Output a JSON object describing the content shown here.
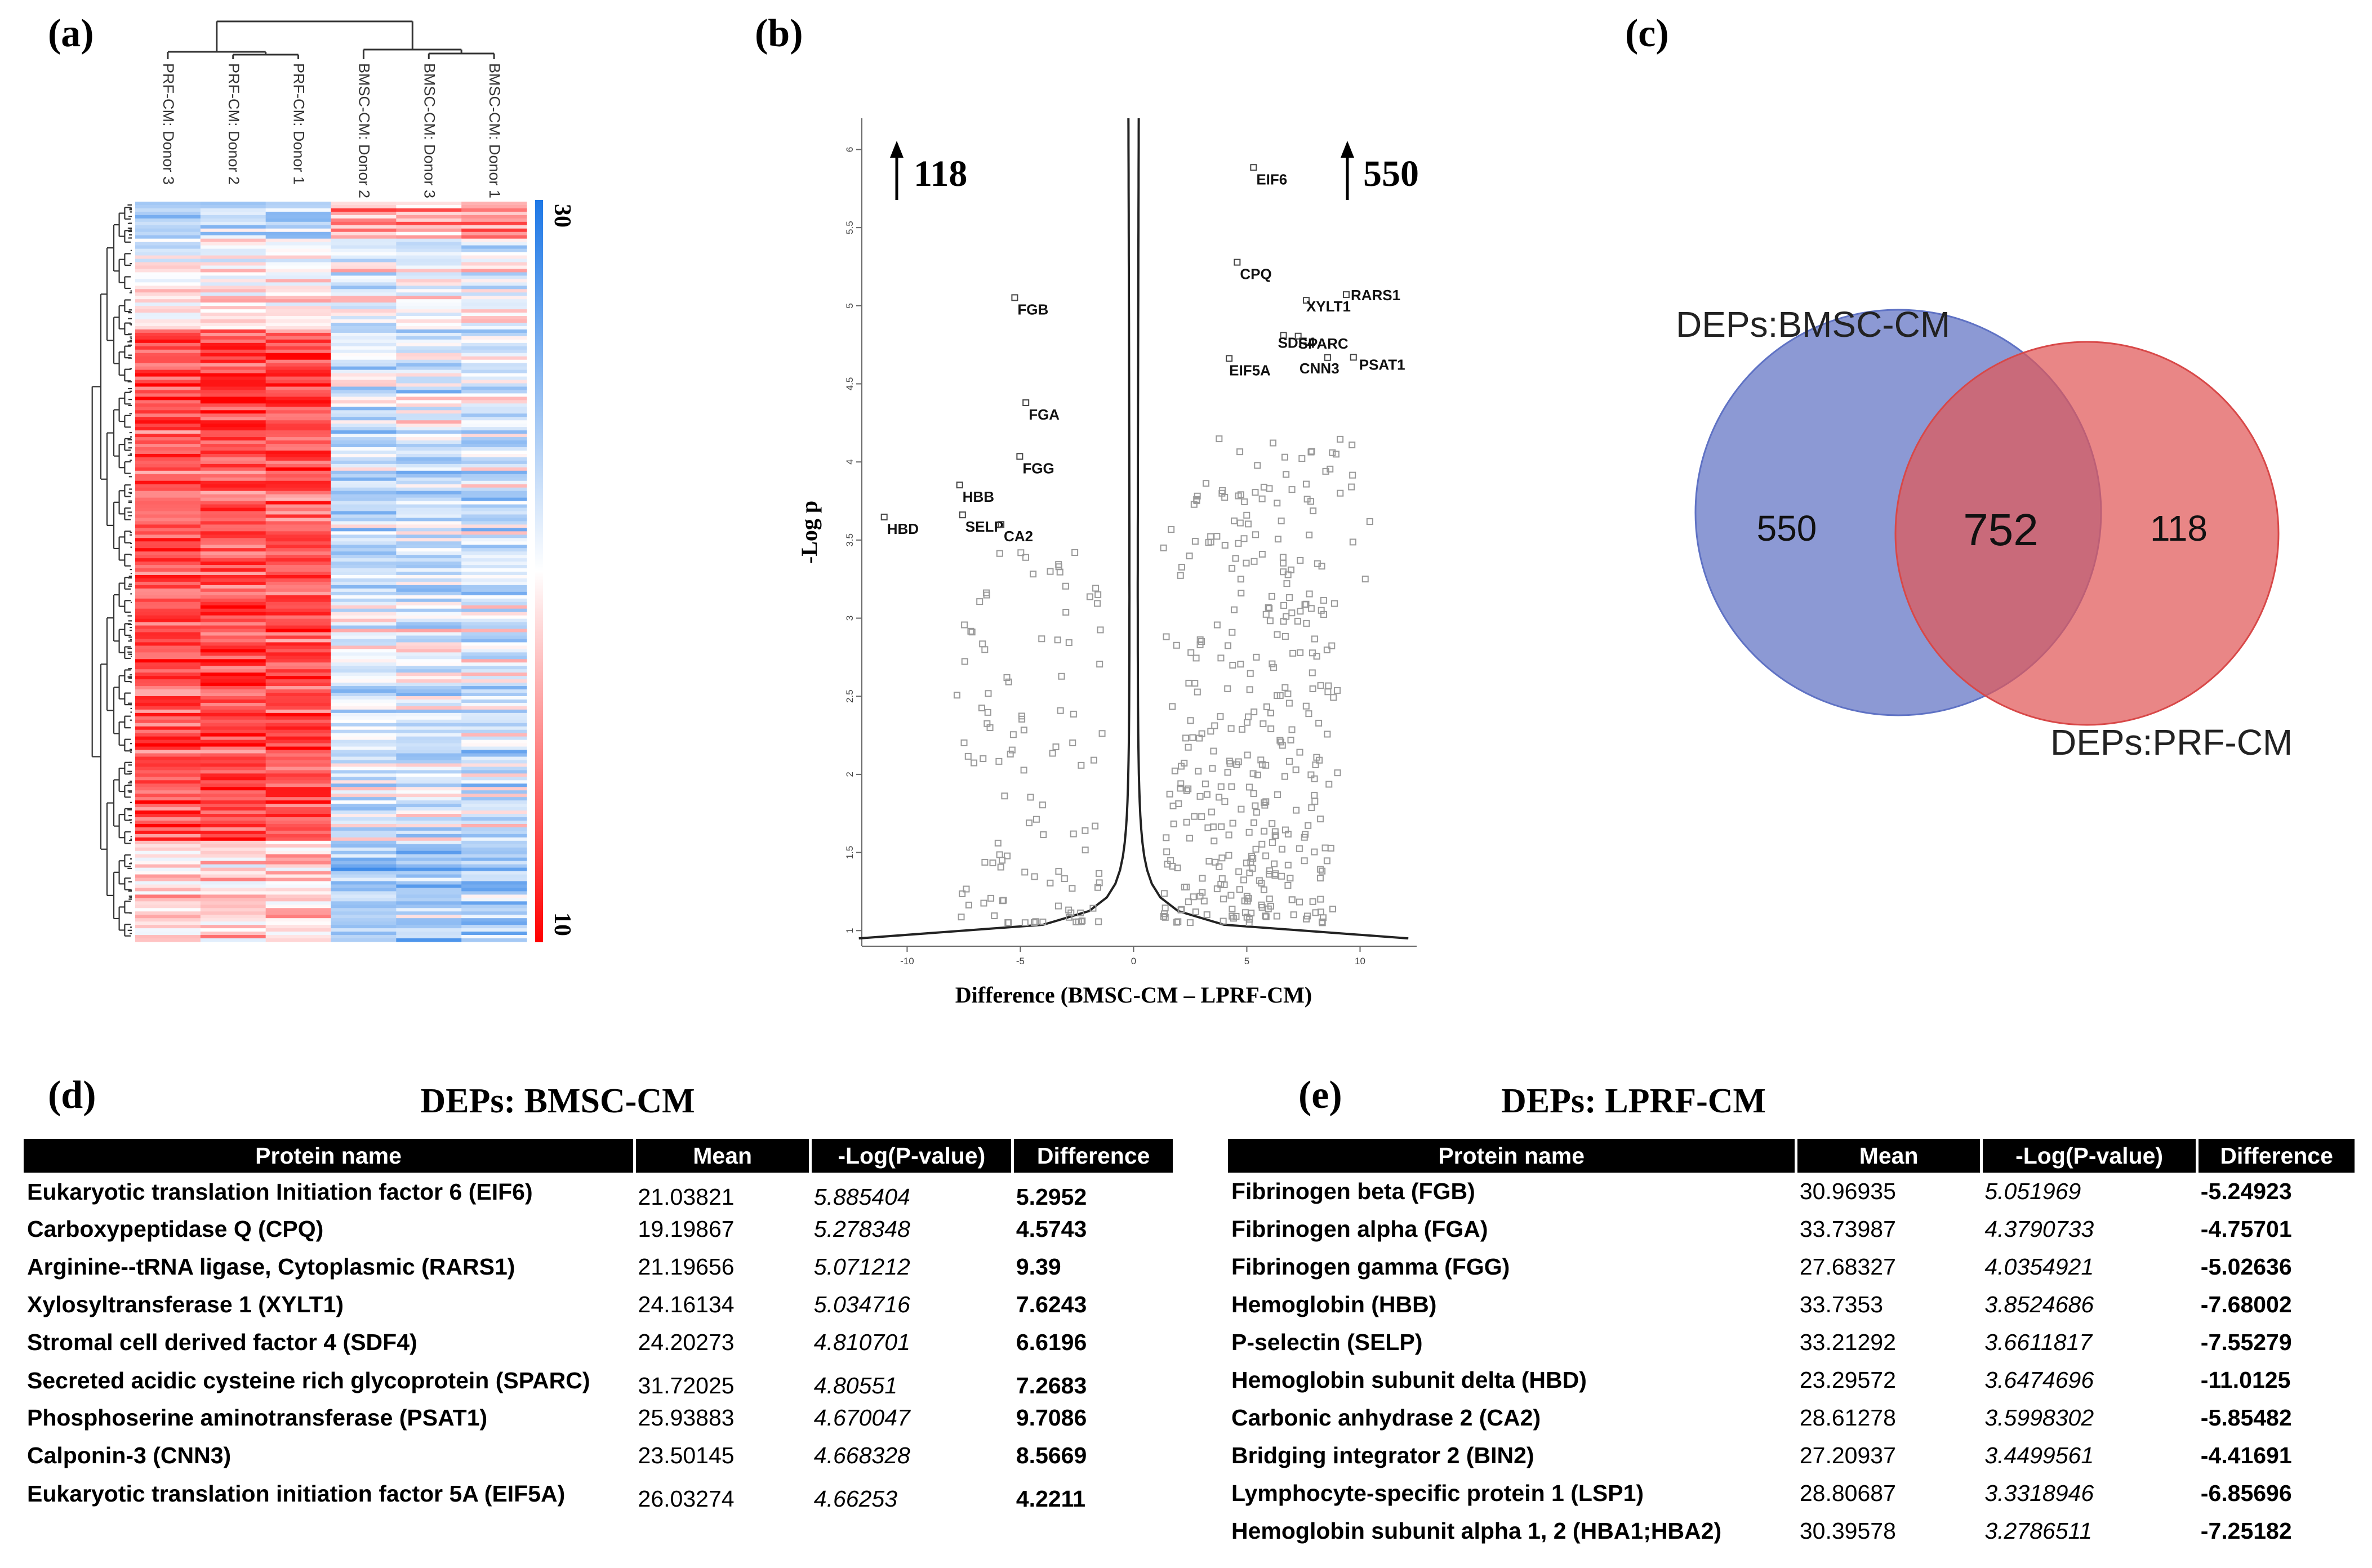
{
  "panel_labels": {
    "a": "(a)",
    "b": "(b)",
    "c": "(c)",
    "d": "(d)",
    "e": "(e)"
  },
  "chart_data": [
    {
      "type": "heatmap",
      "samples": [
        "PRF-CM: Donor 3",
        "PRF-CM: Donor 2",
        "PRF-CM: Donor 1",
        "BMSC-CM: Donor 2",
        "BMSC-CM: Donor 3",
        "BMSC-CM: Donor 1"
      ],
      "colorbar": {
        "min_label": "10",
        "max_label": "30",
        "min_color": "#ff0000",
        "mid_color": "#ffffff",
        "max_color": "#1e78e6"
      },
      "rows_approx": 220
    },
    {
      "type": "scatter",
      "xlabel": "Difference (BMSC-CM – LPRF-CM)",
      "ylabel": "-Log p",
      "xlim": [
        -12,
        12.5
      ],
      "ylim": [
        0.9,
        6.2
      ],
      "xticks": [
        -10,
        -5,
        0,
        5,
        10
      ],
      "yticks": [
        1,
        1.5,
        2,
        2.5,
        3,
        3.5,
        4,
        4.5,
        5,
        5.5,
        6
      ],
      "left_count": "118",
      "right_count": "550",
      "labeled_points": [
        {
          "label": "EIF6",
          "x": 5.2952,
          "y": 5.885404
        },
        {
          "label": "CPQ",
          "x": 4.5743,
          "y": 5.278348
        },
        {
          "label": "RARS1",
          "x": 9.39,
          "y": 5.071212
        },
        {
          "label": "XYLT1",
          "x": 7.6243,
          "y": 5.034716
        },
        {
          "label": "SDF4",
          "x": 6.6196,
          "y": 4.810701
        },
        {
          "label": "SPARC",
          "x": 7.2683,
          "y": 4.80551
        },
        {
          "label": "PSAT1",
          "x": 9.7086,
          "y": 4.670047
        },
        {
          "label": "CNN3",
          "x": 8.5669,
          "y": 4.668328
        },
        {
          "label": "EIF5A",
          "x": 4.2211,
          "y": 4.66253
        },
        {
          "label": "FGB",
          "x": -5.24923,
          "y": 5.051969
        },
        {
          "label": "FGA",
          "x": -4.75701,
          "y": 4.3790733
        },
        {
          "label": "FGG",
          "x": -5.02636,
          "y": 4.0354921
        },
        {
          "label": "HBB",
          "x": -7.68002,
          "y": 3.8524686
        },
        {
          "label": "SELP",
          "x": -7.55279,
          "y": 3.6611817
        },
        {
          "label": "HBD",
          "x": -11.0125,
          "y": 3.6474696
        },
        {
          "label": "CA2",
          "x": -5.85482,
          "y": 3.5998302
        }
      ]
    },
    {
      "type": "venn",
      "sets": [
        {
          "name": "DEPs:BMSC-CM",
          "only": 550,
          "color": "#5f72c4"
        },
        {
          "name": "DEPs:PRF-CM",
          "only": 118,
          "color": "#e06161"
        }
      ],
      "intersection": 752
    },
    {
      "type": "table",
      "title": "DEPs: BMSC-CM",
      "columns": [
        "Protein name",
        "Mean",
        "-Log(P-value)",
        "Difference"
      ],
      "rows": [
        [
          "Eukaryotic translation Initiation factor 6 (EIF6)",
          "21.03821",
          "5.885404",
          "5.2952"
        ],
        [
          "Carboxypeptidase Q (CPQ)",
          "19.19867",
          "5.278348",
          "4.5743"
        ],
        [
          "Arginine--tRNA ligase, Cytoplasmic (RARS1)",
          "21.19656",
          "5.071212",
          "9.39"
        ],
        [
          "Xylosyltransferase 1 (XYLT1)",
          "24.16134",
          "5.034716",
          "7.6243"
        ],
        [
          "Stromal cell derived factor 4 (SDF4)",
          "24.20273",
          "4.810701",
          "6.6196"
        ],
        [
          "Secreted acidic cysteine rich glycoprotein (SPARC)",
          "31.72025",
          "4.80551",
          "7.2683"
        ],
        [
          "Phosphoserine aminotransferase (PSAT1)",
          "25.93883",
          "4.670047",
          "9.7086"
        ],
        [
          "Calponin-3 (CNN3)",
          "23.50145",
          "4.668328",
          "8.5669"
        ],
        [
          "Eukaryotic translation initiation factor 5A (EIF5A)",
          "26.03274",
          "4.66253",
          "4.2211"
        ]
      ]
    },
    {
      "type": "table",
      "title": "DEPs: LPRF-CM",
      "columns": [
        "Protein name",
        "Mean",
        "-Log(P-value)",
        "Difference"
      ],
      "rows": [
        [
          "Fibrinogen beta (FGB)",
          "30.96935",
          "5.051969",
          "-5.24923"
        ],
        [
          "Fibrinogen alpha (FGA)",
          "33.73987",
          "4.3790733",
          "-4.75701"
        ],
        [
          "Fibrinogen gamma (FGG)",
          "27.68327",
          "4.0354921",
          "-5.02636"
        ],
        [
          "Hemoglobin (HBB)",
          "33.7353",
          "3.8524686",
          "-7.68002"
        ],
        [
          "P-selectin (SELP)",
          "33.21292",
          "3.6611817",
          "-7.55279"
        ],
        [
          "Hemoglobin subunit delta (HBD)",
          "23.29572",
          "3.6474696",
          "-11.0125"
        ],
        [
          "Carbonic anhydrase 2 (CA2)",
          "28.61278",
          "3.5998302",
          "-5.85482"
        ],
        [
          "Bridging integrator 2 (BIN2)",
          "27.20937",
          "3.4499561",
          "-4.41691"
        ],
        [
          "Lymphocyte-specific protein 1 (LSP1)",
          "28.80687",
          "3.3318946",
          "-6.85696"
        ],
        [
          "Hemoglobin subunit alpha 1, 2 (HBA1;HBA2)",
          "30.39578",
          "3.2786511",
          "-7.25182"
        ]
      ]
    }
  ]
}
